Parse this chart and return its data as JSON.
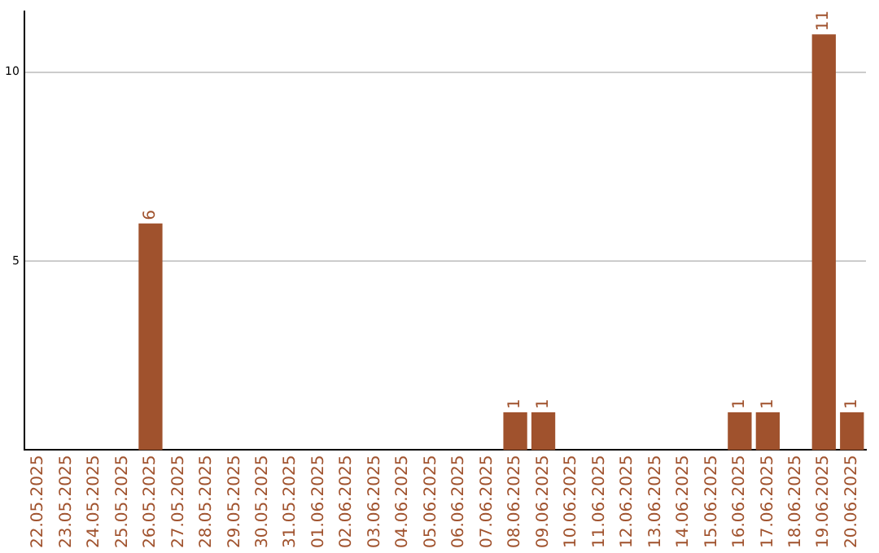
{
  "chart_data": {
    "type": "bar",
    "categories": [
      "22.05.2025",
      "23.05.2025",
      "24.05.2025",
      "25.05.2025",
      "26.05.2025",
      "27.05.2025",
      "28.05.2025",
      "29.05.2025",
      "30.05.2025",
      "31.05.2025",
      "01.06.2025",
      "02.06.2025",
      "03.06.2025",
      "04.06.2025",
      "05.06.2025",
      "06.06.2025",
      "07.06.2025",
      "08.06.2025",
      "09.06.2025",
      "10.06.2025",
      "11.06.2025",
      "12.06.2025",
      "13.06.2025",
      "14.06.2025",
      "15.06.2025",
      "16.06.2025",
      "17.06.2025",
      "18.06.2025",
      "19.06.2025",
      "20.06.2025"
    ],
    "values": [
      0,
      0,
      0,
      0,
      6,
      0,
      0,
      0,
      0,
      0,
      0,
      0,
      0,
      0,
      0,
      0,
      0,
      1,
      1,
      0,
      0,
      0,
      0,
      0,
      0,
      1,
      1,
      0,
      11,
      1
    ],
    "value_labels": [
      null,
      null,
      null,
      null,
      "6",
      null,
      null,
      null,
      null,
      null,
      null,
      null,
      null,
      null,
      null,
      null,
      null,
      "1",
      "1",
      null,
      null,
      null,
      null,
      null,
      null,
      "1",
      "1",
      null,
      "11",
      "1"
    ],
    "color": "#a0522d",
    "ylim": [
      0,
      11.6
    ],
    "yticks": [
      5,
      10
    ],
    "grid": "y",
    "legend": false
  }
}
